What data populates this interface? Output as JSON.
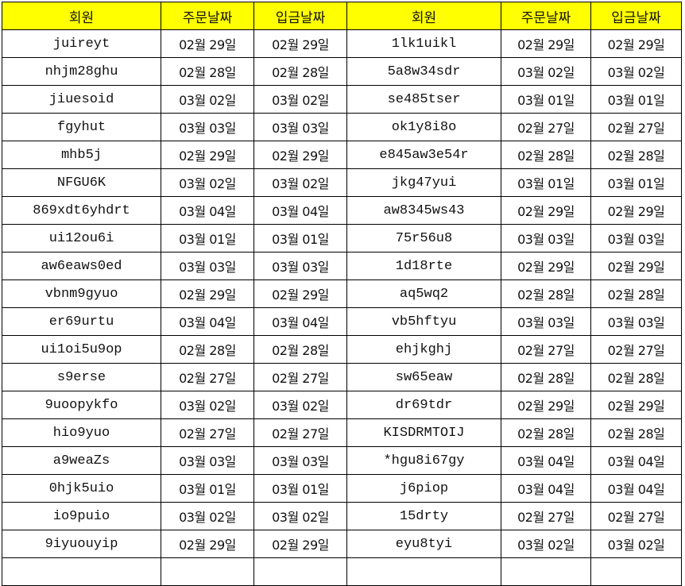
{
  "header": {
    "member": "회원",
    "order_date": "주문날짜",
    "deposit_date": "입금날짜"
  },
  "colors": {
    "header_bg": "#ffff00",
    "grid": "#000000"
  },
  "rows": [
    {
      "left": {
        "member": "juireyt",
        "order": "02월 29일",
        "deposit": "02월 29일"
      },
      "right": {
        "member": "1lk1uikl",
        "order": "02월 29일",
        "deposit": "02월 29일"
      }
    },
    {
      "left": {
        "member": "nhjm28ghu",
        "order": "02월 28일",
        "deposit": "02월 28일"
      },
      "right": {
        "member": "5a8w34sdr",
        "order": "03월 02일",
        "deposit": "03월 02일"
      }
    },
    {
      "left": {
        "member": "jiuesoid",
        "order": "03월 02일",
        "deposit": "03월 02일"
      },
      "right": {
        "member": "se485tser",
        "order": "03월 01일",
        "deposit": "03월 01일"
      }
    },
    {
      "left": {
        "member": "fgyhut",
        "order": "03월 03일",
        "deposit": "03월 03일"
      },
      "right": {
        "member": "ok1y8i8o",
        "order": "02월 27일",
        "deposit": "02월 27일"
      }
    },
    {
      "left": {
        "member": "mhb5j",
        "order": "02월 29일",
        "deposit": "02월 29일"
      },
      "right": {
        "member": "e845aw3e54r",
        "order": "02월 28일",
        "deposit": "02월 28일"
      }
    },
    {
      "left": {
        "member": "NFGU6K",
        "order": "03월 02일",
        "deposit": "03월 02일"
      },
      "right": {
        "member": "jkg47yui",
        "order": "03월 01일",
        "deposit": "03월 01일"
      }
    },
    {
      "left": {
        "member": "869xdt6yhdrt",
        "order": "03월 04일",
        "deposit": "03월 04일"
      },
      "right": {
        "member": "aw8345ws43",
        "order": "02월 29일",
        "deposit": "02월 29일"
      }
    },
    {
      "left": {
        "member": "ui12ou6i",
        "order": "03월 01일",
        "deposit": "03월 01일"
      },
      "right": {
        "member": "75r56u8",
        "order": "03월 03일",
        "deposit": "03월 03일"
      }
    },
    {
      "left": {
        "member": "aw6eaws0ed",
        "order": "03월 03일",
        "deposit": "03월 03일"
      },
      "right": {
        "member": "1d18rte",
        "order": "02월 29일",
        "deposit": "02월 29일"
      }
    },
    {
      "left": {
        "member": "vbnm9gyuo",
        "order": "02월 29일",
        "deposit": "02월 29일"
      },
      "right": {
        "member": "aq5wq2",
        "order": "02월 28일",
        "deposit": "02월 28일"
      }
    },
    {
      "left": {
        "member": "er69urtu",
        "order": "03월 04일",
        "deposit": "03월 04일"
      },
      "right": {
        "member": "vb5hftyu",
        "order": "03월 03일",
        "deposit": "03월 03일"
      }
    },
    {
      "left": {
        "member": "ui1oi5u9op",
        "order": "02월 28일",
        "deposit": "02월 28일"
      },
      "right": {
        "member": "ehjkghj",
        "order": "02월 27일",
        "deposit": "02월 27일"
      }
    },
    {
      "left": {
        "member": "s9erse",
        "order": "02월 27일",
        "deposit": "02월 27일"
      },
      "right": {
        "member": "sw65eaw",
        "order": "02월 28일",
        "deposit": "02월 28일"
      }
    },
    {
      "left": {
        "member": "9uoopykfo",
        "order": "03월 02일",
        "deposit": "03월 02일"
      },
      "right": {
        "member": "dr69tdr",
        "order": "02월 29일",
        "deposit": "02월 29일"
      }
    },
    {
      "left": {
        "member": "hio9yuo",
        "order": "02월 27일",
        "deposit": "02월 27일"
      },
      "right": {
        "member": "KISDRMTOIJ",
        "order": "02월 28일",
        "deposit": "02월 28일"
      }
    },
    {
      "left": {
        "member": "a9weaZs",
        "order": "03월 03일",
        "deposit": "03월 03일"
      },
      "right": {
        "member": "*hgu8i67gy",
        "order": "03월 04일",
        "deposit": "03월 04일"
      }
    },
    {
      "left": {
        "member": "0hjk5uio",
        "order": "03월 01일",
        "deposit": "03월 01일"
      },
      "right": {
        "member": "j6piop",
        "order": "03월 04일",
        "deposit": "03월 04일"
      }
    },
    {
      "left": {
        "member": "io9puio",
        "order": "03월 02일",
        "deposit": "03월 02일"
      },
      "right": {
        "member": "15drty",
        "order": "02월 27일",
        "deposit": "02월 27일"
      }
    },
    {
      "left": {
        "member": "9iyuouyip",
        "order": "02월 29일",
        "deposit": "02월 29일"
      },
      "right": {
        "member": "eyu8tyi",
        "order": "03월 02일",
        "deposit": "03월 02일"
      }
    }
  ]
}
